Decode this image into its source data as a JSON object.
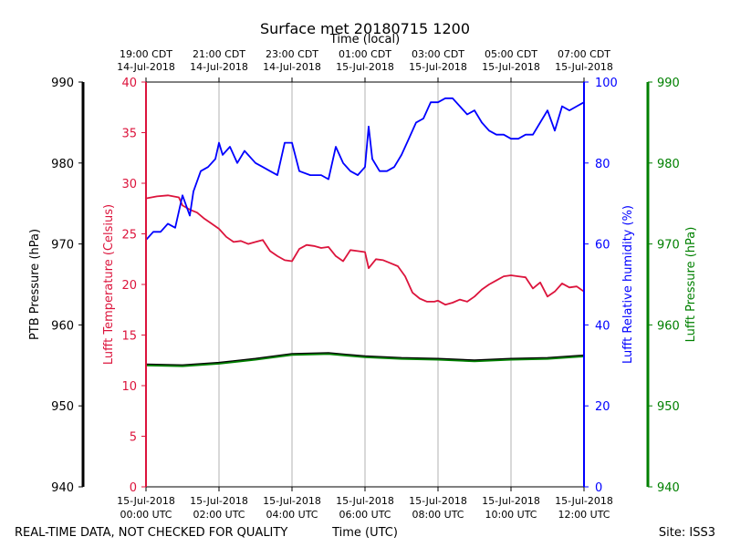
{
  "chart_data": {
    "type": "line",
    "title": "Surface met 20180715 1200",
    "top_xlabel": "Time (local)",
    "xlabel": "Time (UTC)",
    "footer_left": "REAL-TIME DATA, NOT CHECKED FOR QUALITY",
    "footer_right": "Site: ISS3",
    "xlim_hours": [
      0,
      12
    ],
    "x_ticks_utc": [
      {
        "h": 0,
        "line1": "15-Jul-2018",
        "line2": "00:00 UTC"
      },
      {
        "h": 2,
        "line1": "15-Jul-2018",
        "line2": "02:00 UTC"
      },
      {
        "h": 4,
        "line1": "15-Jul-2018",
        "line2": "04:00 UTC"
      },
      {
        "h": 6,
        "line1": "15-Jul-2018",
        "line2": "06:00 UTC"
      },
      {
        "h": 8,
        "line1": "15-Jul-2018",
        "line2": "08:00 UTC"
      },
      {
        "h": 10,
        "line1": "15-Jul-2018",
        "line2": "10:00 UTC"
      },
      {
        "h": 12,
        "line1": "15-Jul-2018",
        "line2": "12:00 UTC"
      }
    ],
    "x_ticks_local": [
      {
        "h": 0,
        "line1": "19:00 CDT",
        "line2": "14-Jul-2018"
      },
      {
        "h": 2,
        "line1": "21:00 CDT",
        "line2": "14-Jul-2018"
      },
      {
        "h": 4,
        "line1": "23:00 CDT",
        "line2": "14-Jul-2018"
      },
      {
        "h": 6,
        "line1": "01:00 CDT",
        "line2": "15-Jul-2018"
      },
      {
        "h": 8,
        "line1": "03:00 CDT",
        "line2": "15-Jul-2018"
      },
      {
        "h": 10,
        "line1": "05:00 CDT",
        "line2": "15-Jul-2018"
      },
      {
        "h": 12,
        "line1": "07:00 CDT",
        "line2": "15-Jul-2018"
      }
    ],
    "axes": {
      "temp": {
        "label": "Lufft Temperature (Celsius)",
        "ylim": [
          0,
          40
        ],
        "ticks": [
          0,
          5,
          10,
          15,
          20,
          25,
          30,
          35,
          40
        ],
        "color": "#dc143c"
      },
      "rh": {
        "label": "Lufft Relative humidity (%)",
        "ylim": [
          0,
          100
        ],
        "ticks": [
          0,
          20,
          40,
          60,
          80,
          100
        ],
        "color": "#0000ff"
      },
      "ptb": {
        "label": "PTB Pressure (hPa)",
        "ylim": [
          940,
          990
        ],
        "ticks": [
          940,
          950,
          960,
          970,
          980,
          990
        ],
        "color": "#000000"
      },
      "lufft_p": {
        "label": "Lufft Pressure (hPa)",
        "ylim": [
          940,
          990
        ],
        "ticks": [
          940,
          950,
          960,
          970,
          980,
          990
        ],
        "color": "#008000"
      }
    },
    "series": [
      {
        "name": "Lufft Temperature",
        "axis": "temp",
        "color": "#dc143c",
        "x": [
          0,
          0.3,
          0.6,
          0.9,
          1.0,
          1.2,
          1.4,
          1.6,
          1.8,
          2.0,
          2.2,
          2.4,
          2.6,
          2.8,
          3.0,
          3.2,
          3.4,
          3.6,
          3.8,
          4.0,
          4.2,
          4.4,
          4.6,
          4.8,
          5.0,
          5.2,
          5.4,
          5.6,
          5.8,
          6.0,
          6.1,
          6.3,
          6.5,
          6.7,
          6.9,
          7.1,
          7.3,
          7.5,
          7.7,
          7.9,
          8.0,
          8.2,
          8.4,
          8.6,
          8.8,
          9.0,
          9.2,
          9.4,
          9.6,
          9.8,
          10.0,
          10.2,
          10.4,
          10.6,
          10.8,
          11.0,
          11.2,
          11.4,
          11.6,
          11.8,
          12.0
        ],
        "y": [
          28.5,
          28.7,
          28.8,
          28.6,
          27.8,
          27.4,
          27.1,
          26.5,
          26.0,
          25.5,
          24.7,
          24.2,
          24.3,
          24.0,
          24.2,
          24.4,
          23.3,
          22.8,
          22.4,
          22.3,
          23.5,
          23.9,
          23.8,
          23.6,
          23.7,
          22.8,
          22.3,
          23.4,
          23.3,
          23.2,
          21.6,
          22.5,
          22.4,
          22.1,
          21.8,
          20.8,
          19.2,
          18.6,
          18.3,
          18.3,
          18.4,
          18.0,
          18.2,
          18.5,
          18.3,
          18.8,
          19.5,
          20.0,
          20.4,
          20.8,
          20.9,
          20.8,
          20.7,
          19.6,
          20.2,
          18.8,
          19.3,
          20.1,
          19.7,
          19.8,
          19.3
        ]
      },
      {
        "name": "Lufft Relative humidity",
        "axis": "rh",
        "color": "#0000ff",
        "x": [
          0,
          0.2,
          0.4,
          0.6,
          0.8,
          1.0,
          1.2,
          1.3,
          1.5,
          1.7,
          1.9,
          2.0,
          2.1,
          2.3,
          2.5,
          2.7,
          3.0,
          3.2,
          3.4,
          3.6,
          3.8,
          4.0,
          4.2,
          4.5,
          4.8,
          5.0,
          5.2,
          5.4,
          5.6,
          5.8,
          6.0,
          6.1,
          6.2,
          6.4,
          6.6,
          6.8,
          7.0,
          7.2,
          7.4,
          7.6,
          7.8,
          8.0,
          8.2,
          8.4,
          8.6,
          8.8,
          9.0,
          9.2,
          9.4,
          9.6,
          9.8,
          10.0,
          10.2,
          10.4,
          10.6,
          10.8,
          11.0,
          11.2,
          11.4,
          11.6,
          11.8,
          12.0
        ],
        "y": [
          61,
          63,
          63,
          65,
          64,
          72,
          67,
          73,
          78,
          79,
          81,
          85,
          82,
          84,
          80,
          83,
          80,
          79,
          78,
          77,
          85,
          85,
          78,
          77,
          77,
          76,
          84,
          80,
          78,
          77,
          79,
          89,
          81,
          78,
          78,
          79,
          82,
          86,
          90,
          91,
          95,
          95,
          96,
          96,
          94,
          92,
          93,
          90,
          88,
          87,
          87,
          86,
          86,
          87,
          87,
          90,
          93,
          88,
          94,
          93,
          94,
          95
        ]
      },
      {
        "name": "PTB Pressure",
        "axis": "ptb",
        "color": "#000000",
        "x": [
          0,
          1,
          2,
          3,
          4,
          5,
          6,
          7,
          8,
          9,
          10,
          11,
          12
        ],
        "y": [
          955.1,
          955.0,
          955.3,
          955.8,
          956.4,
          956.5,
          956.1,
          955.9,
          955.8,
          955.6,
          955.8,
          955.9,
          956.2
        ]
      },
      {
        "name": "Lufft Pressure",
        "axis": "lufft_p",
        "color": "#008000",
        "x": [
          0,
          1,
          2,
          3,
          4,
          5,
          6,
          7,
          8,
          9,
          10,
          11,
          12
        ],
        "y": [
          955.0,
          954.9,
          955.2,
          955.7,
          956.3,
          956.4,
          956.0,
          955.8,
          955.7,
          955.5,
          955.7,
          955.8,
          956.1
        ]
      }
    ]
  }
}
